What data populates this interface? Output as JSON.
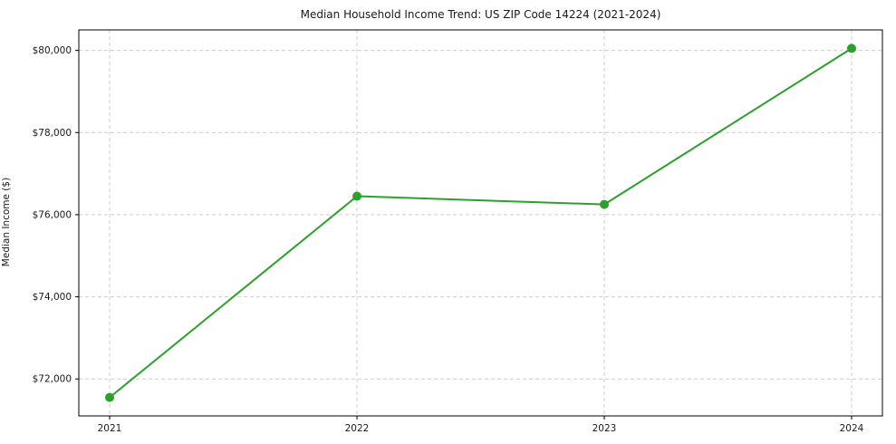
{
  "chart_data": {
    "type": "line",
    "title": "Median Household Income Trend: US ZIP Code 14224 (2021-2024)",
    "xlabel": "",
    "ylabel": "Median Income ($)",
    "categories": [
      "2021",
      "2022",
      "2023",
      "2024"
    ],
    "series": [
      {
        "name": "Median Household Income",
        "values": [
          71550,
          76450,
          76250,
          80050
        ]
      }
    ],
    "ylim": [
      71100,
      80500
    ],
    "yticks": [
      72000,
      74000,
      76000,
      78000,
      80000
    ],
    "ytick_labels": [
      "$72,000",
      "$74,000",
      "$76,000",
      "$78,000",
      "$80,000"
    ],
    "grid": true,
    "grid_style": "dashed",
    "legend": false,
    "colors": {
      "line": "#2ca02c",
      "marker": "#2ca02c",
      "grid": "#cccccc",
      "axis_border": "#000000",
      "background": "#ffffff"
    }
  }
}
